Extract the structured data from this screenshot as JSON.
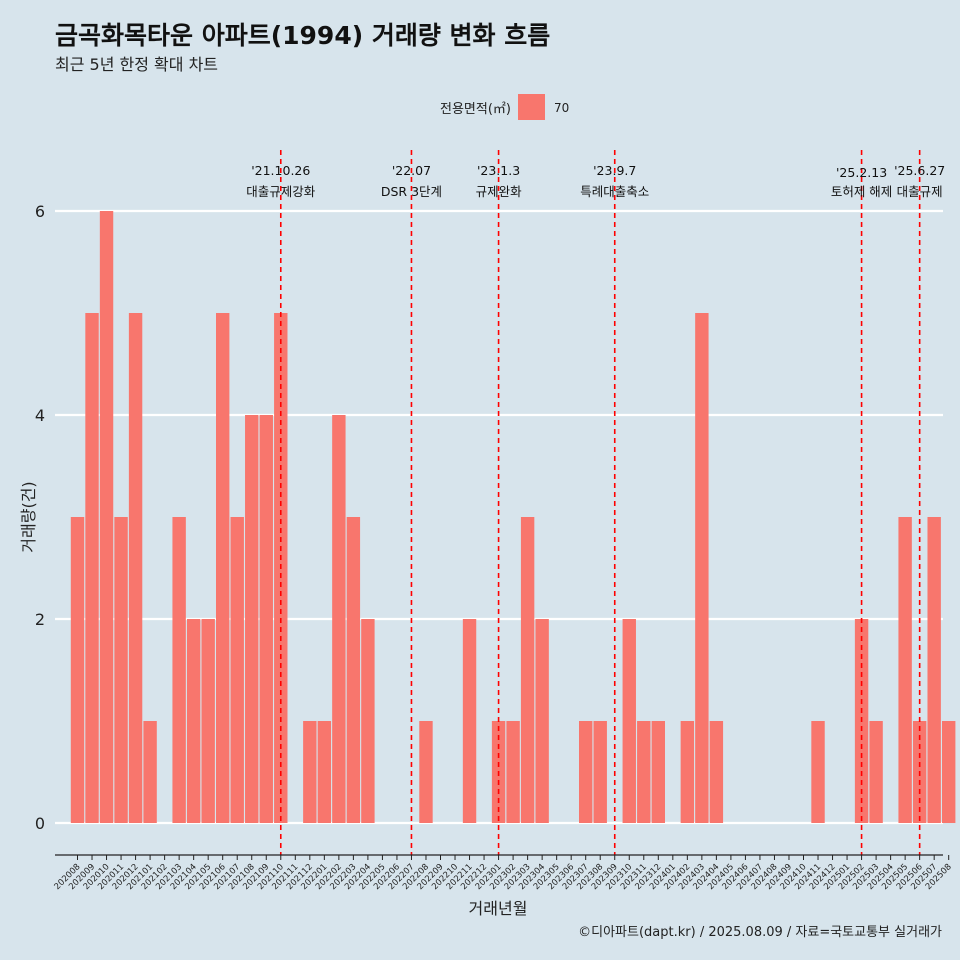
{
  "chart_data": {
    "type": "bar",
    "title": "금곡화목타운 아파트(1994) 거래량 변화 흐름",
    "subtitle": "최근 5년 한정 확대 차트",
    "xlabel": "거래년월",
    "ylabel": "거래량(건)",
    "ylim": [
      0,
      6
    ],
    "y_ticks": [
      0,
      2,
      4,
      6
    ],
    "legend": {
      "title": "전용면적(㎡)",
      "label": "70",
      "color": "#f8766d",
      "position": "top"
    },
    "grid": true,
    "categories": [
      "202008",
      "202009",
      "202010",
      "202011",
      "202012",
      "202101",
      "202102",
      "202103",
      "202104",
      "202105",
      "202106",
      "202107",
      "202108",
      "202109",
      "202110",
      "202111",
      "202112",
      "202201",
      "202202",
      "202203",
      "202204",
      "202205",
      "202206",
      "202207",
      "202208",
      "202209",
      "202210",
      "202211",
      "202212",
      "202301",
      "202302",
      "202303",
      "202304",
      "202305",
      "202306",
      "202307",
      "202308",
      "202309",
      "202310",
      "202311",
      "202312",
      "202401",
      "202402",
      "202403",
      "202404",
      "202405",
      "202406",
      "202407",
      "202408",
      "202409",
      "202410",
      "202411",
      "202412",
      "202501",
      "202502",
      "202503",
      "202504",
      "202505",
      "202506",
      "202507",
      "202508"
    ],
    "series": [
      {
        "name": "70",
        "values": [
          3,
          5,
          6,
          3,
          5,
          1,
          0,
          3,
          2,
          2,
          5,
          3,
          4,
          4,
          5,
          0,
          1,
          1,
          4,
          3,
          2,
          0,
          0,
          0,
          1,
          0,
          0,
          2,
          0,
          1,
          1,
          3,
          2,
          0,
          0,
          1,
          1,
          0,
          2,
          1,
          1,
          0,
          1,
          5,
          1,
          0,
          0,
          0,
          0,
          0,
          0,
          1,
          0,
          0,
          2,
          1,
          0,
          3,
          1,
          3,
          1
        ]
      }
    ],
    "events": [
      {
        "date": "'21.10.26",
        "label": "대출규제강화",
        "at": "202110"
      },
      {
        "date": "'22.07",
        "label": "DSR 3단계",
        "at": "202207"
      },
      {
        "date": "'23.1.3",
        "label": "규제완화",
        "at": "202301"
      },
      {
        "date": "'23.9.7",
        "label": "특례대출축소",
        "at": "202309"
      },
      {
        "date": "'25.2.13",
        "label": "토허제 해제",
        "at": "202502"
      },
      {
        "date": "'25.6.27",
        "label": "대출규제",
        "at": "202506"
      }
    ],
    "caption": "©디아파트(dapt.kr) / 2025.08.09 / 자료=국토교통부 실거래가",
    "colors": {
      "bar": "#f8766d",
      "event_line": "#ff0000",
      "background": "#d7e4ec",
      "grid": "#ffffff"
    }
  }
}
